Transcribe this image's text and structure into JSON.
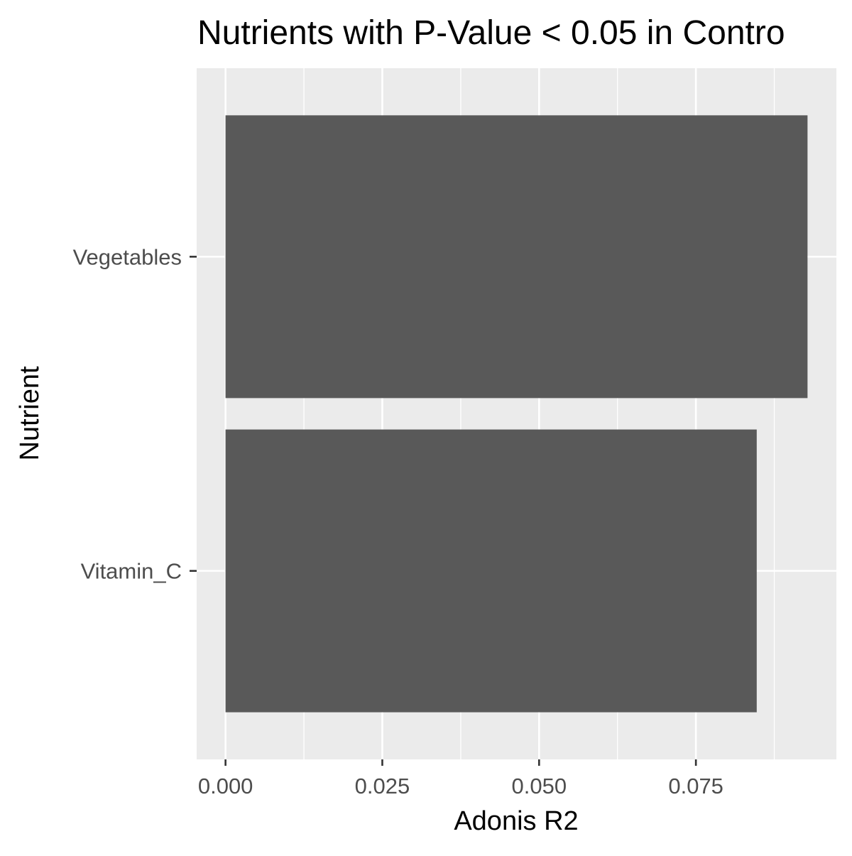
{
  "chart_data": {
    "type": "bar",
    "orientation": "horizontal",
    "title": "Nutrients with P-Value < 0.05 in Contro",
    "xlabel": "Adonis R2",
    "ylabel": "Nutrient",
    "categories": [
      "Vegetables",
      "Vitamin_C"
    ],
    "values": [
      0.0928,
      0.0847
    ],
    "xlim": [
      -0.0046,
      0.0974
    ],
    "x_ticks": [
      0.0,
      0.025,
      0.05,
      0.075
    ],
    "x_tick_labels": [
      "0.000",
      "0.025",
      "0.050",
      "0.075"
    ],
    "grid": true,
    "legend": "none",
    "colors": {
      "bar": "#595959",
      "panel": "#EBEBEB",
      "grid": "#FFFFFF",
      "tick_text": "#4D4D4D",
      "axis_text": "#000000"
    }
  }
}
